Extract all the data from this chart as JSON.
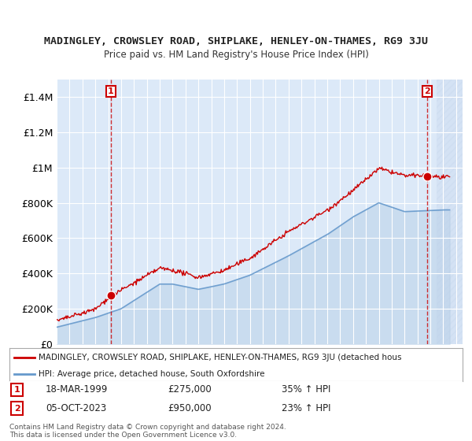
{
  "title": "MADINGLEY, CROWSLEY ROAD, SHIPLAKE, HENLEY-ON-THAMES, RG9 3JU",
  "subtitle": "Price paid vs. HM Land Registry's House Price Index (HPI)",
  "xlabel": "",
  "ylabel": "",
  "ylim": [
    0,
    1500000
  ],
  "yticks": [
    0,
    200000,
    400000,
    600000,
    800000,
    1000000,
    1200000,
    1400000
  ],
  "ytick_labels": [
    "£0",
    "£200K",
    "£400K",
    "£600K",
    "£800K",
    "£1M",
    "£1.2M",
    "£1.4M"
  ],
  "xlim_start": 1995.0,
  "xlim_end": 2026.5,
  "background_color": "#ffffff",
  "plot_bg_color": "#dce9f8",
  "grid_color": "#ffffff",
  "hatch_color": "#c8d8ee",
  "sale1_x": 1999.21,
  "sale1_y": 275000,
  "sale1_label": "1",
  "sale1_date": "18-MAR-1999",
  "sale1_price": "£275,000",
  "sale1_hpi": "35% ↑ HPI",
  "sale2_x": 2023.75,
  "sale2_y": 950000,
  "sale2_label": "2",
  "sale2_date": "05-OCT-2023",
  "sale2_price": "£950,000",
  "sale2_hpi": "23% ↑ HPI",
  "vline1_x": 1999.21,
  "vline2_x": 2023.75,
  "hatch_start": 2024.5,
  "legend_line1": "MADINGLEY, CROWSLEY ROAD, SHIPLAKE, HENLEY-ON-THAMES, RG9 3JU (detached hous",
  "legend_line2": "HPI: Average price, detached house, South Oxfordshire",
  "footer": "Contains HM Land Registry data © Crown copyright and database right 2024.\nThis data is licensed under the Open Government Licence v3.0.",
  "property_line_color": "#cc0000",
  "hpi_line_color": "#6699cc",
  "hpi_fill_color": "#b8d0e8",
  "marker_color": "#cc0000",
  "marker_border_color": "#cc0000"
}
